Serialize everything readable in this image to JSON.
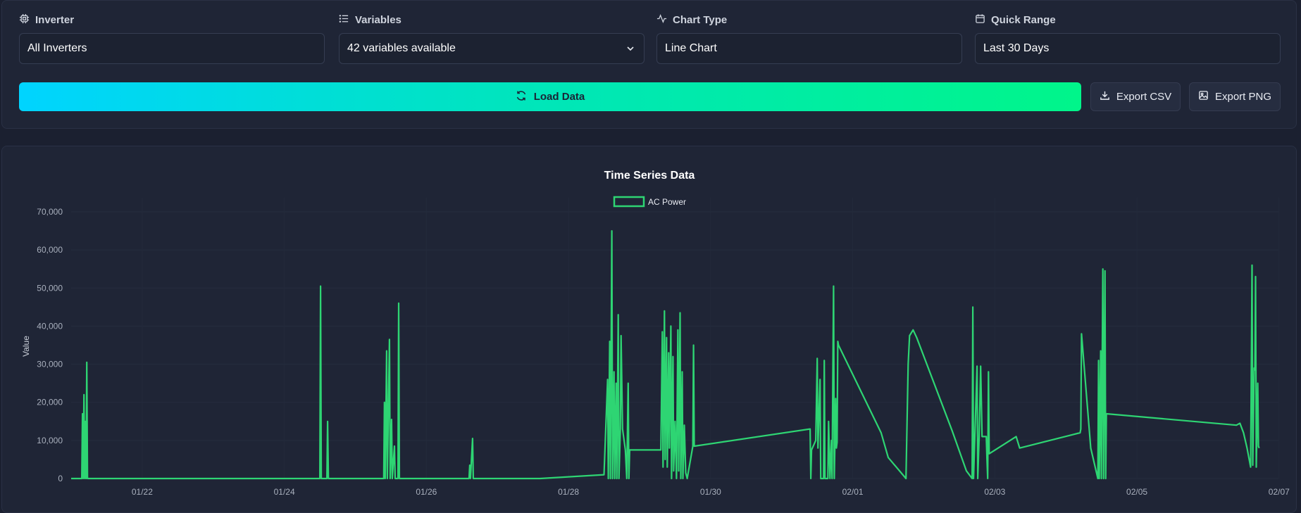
{
  "controls": {
    "inverter": {
      "label": "Inverter",
      "value": "All Inverters",
      "icon": "cpu-icon"
    },
    "variables": {
      "label": "Variables",
      "value": "42 variables available",
      "icon": "list-icon"
    },
    "chart_type": {
      "label": "Chart Type",
      "value": "Line Chart",
      "icon": "activity-icon"
    },
    "quick_range": {
      "label": "Quick Range",
      "value": "Last 30 Days",
      "icon": "calendar-icon"
    },
    "load_button": "Load Data",
    "export_csv": "Export CSV",
    "export_png": "Export PNG"
  },
  "colors": {
    "accent_start": "#00d4ff",
    "accent_end": "#00f58a",
    "series": "#2ed573"
  },
  "chart_data": {
    "type": "line",
    "title": "Time Series Data",
    "ylabel": "Value",
    "xlabel": "",
    "ylim": [
      0,
      70000
    ],
    "yticks": [
      "0",
      "10,000",
      "20,000",
      "30,000",
      "40,000",
      "50,000",
      "60,000",
      "70,000"
    ],
    "xticks": [
      "01/22",
      "01/24",
      "01/26",
      "01/28",
      "01/30",
      "02/01",
      "02/03",
      "02/05",
      "02/07"
    ],
    "legend_position": "top-center",
    "series": [
      {
        "name": "AC Power",
        "points": [
          [
            21.0,
            0
          ],
          [
            21.15,
            0
          ],
          [
            21.16,
            17000
          ],
          [
            21.17,
            0
          ],
          [
            21.18,
            22000
          ],
          [
            21.19,
            0
          ],
          [
            21.2,
            15000
          ],
          [
            21.21,
            0
          ],
          [
            21.22,
            30500
          ],
          [
            21.23,
            0
          ],
          [
            24.5,
            0
          ],
          [
            24.51,
            50500
          ],
          [
            24.52,
            0
          ],
          [
            24.6,
            0
          ],
          [
            24.61,
            15000
          ],
          [
            24.62,
            0
          ],
          [
            25.4,
            0
          ],
          [
            25.41,
            20000
          ],
          [
            25.42,
            0
          ],
          [
            25.44,
            33500
          ],
          [
            25.45,
            0
          ],
          [
            25.48,
            36500
          ],
          [
            25.49,
            0
          ],
          [
            25.51,
            15500
          ],
          [
            25.52,
            0
          ],
          [
            25.55,
            8500
          ],
          [
            25.56,
            0
          ],
          [
            25.6,
            0
          ],
          [
            25.61,
            46000
          ],
          [
            25.62,
            0
          ],
          [
            26.6,
            0
          ],
          [
            26.61,
            3500
          ],
          [
            26.62,
            0
          ],
          [
            26.65,
            10500
          ],
          [
            26.66,
            0
          ],
          [
            26.95,
            0
          ],
          [
            27.6,
            0
          ],
          [
            28.5,
            1000
          ],
          [
            28.55,
            26000
          ],
          [
            28.56,
            0
          ],
          [
            28.58,
            36000
          ],
          [
            28.59,
            0
          ],
          [
            28.61,
            65000
          ],
          [
            28.62,
            0
          ],
          [
            28.64,
            28000
          ],
          [
            28.65,
            0
          ],
          [
            28.67,
            25000
          ],
          [
            28.68,
            0
          ],
          [
            28.7,
            43000
          ],
          [
            28.71,
            0
          ],
          [
            28.73,
            13000
          ],
          [
            28.74,
            37500
          ],
          [
            28.76,
            13000
          ],
          [
            28.8,
            7500
          ],
          [
            28.82,
            0
          ],
          [
            28.84,
            25000
          ],
          [
            28.85,
            0
          ],
          [
            28.86,
            7500
          ],
          [
            29.3,
            7500
          ],
          [
            29.32,
            38500
          ],
          [
            29.33,
            3000
          ],
          [
            29.35,
            44000
          ],
          [
            29.36,
            5000
          ],
          [
            29.38,
            37000
          ],
          [
            29.39,
            3000
          ],
          [
            29.41,
            33000
          ],
          [
            29.42,
            8000
          ],
          [
            29.44,
            40000
          ],
          [
            29.45,
            0
          ],
          [
            29.47,
            32000
          ],
          [
            29.48,
            2000
          ],
          [
            29.5,
            15000
          ],
          [
            29.52,
            0
          ],
          [
            29.54,
            39000
          ],
          [
            29.55,
            2000
          ],
          [
            29.57,
            43500
          ],
          [
            29.58,
            0
          ],
          [
            29.6,
            28000
          ],
          [
            29.61,
            0
          ],
          [
            29.63,
            14000
          ],
          [
            29.65,
            1500
          ],
          [
            29.67,
            0
          ],
          [
            29.75,
            8500
          ],
          [
            29.76,
            35000
          ],
          [
            29.77,
            8500
          ],
          [
            31.4,
            13000
          ],
          [
            31.41,
            0
          ],
          [
            31.42,
            7500
          ],
          [
            31.48,
            10000
          ],
          [
            31.5,
            31500
          ],
          [
            31.51,
            8000
          ],
          [
            31.54,
            26000
          ],
          [
            31.55,
            0
          ],
          [
            31.59,
            0
          ],
          [
            31.6,
            31000
          ],
          [
            31.61,
            0
          ],
          [
            31.65,
            0
          ],
          [
            31.66,
            15000
          ],
          [
            31.68,
            0
          ],
          [
            31.7,
            10000
          ],
          [
            31.71,
            0
          ],
          [
            31.72,
            25000
          ],
          [
            31.73,
            50500
          ],
          [
            31.74,
            0
          ],
          [
            31.76,
            21000
          ],
          [
            31.77,
            8000
          ],
          [
            31.78,
            9500
          ],
          [
            31.79,
            36000
          ],
          [
            31.8,
            35000
          ],
          [
            32.4,
            12000
          ],
          [
            32.5,
            5500
          ],
          [
            32.75,
            0
          ],
          [
            32.78,
            30000
          ],
          [
            32.8,
            37500
          ],
          [
            32.85,
            39000
          ],
          [
            32.9,
            37000
          ],
          [
            33.4,
            12500
          ],
          [
            33.6,
            2000
          ],
          [
            33.68,
            0
          ],
          [
            33.69,
            45000
          ],
          [
            33.7,
            0
          ],
          [
            33.75,
            29500
          ],
          [
            33.76,
            0
          ],
          [
            33.78,
            11000
          ],
          [
            33.8,
            29500
          ],
          [
            33.82,
            11000
          ],
          [
            33.88,
            11000
          ],
          [
            33.89,
            5000
          ],
          [
            33.9,
            0
          ],
          [
            33.91,
            28000
          ],
          [
            33.92,
            6500
          ],
          [
            34.3,
            11000
          ],
          [
            34.35,
            8000
          ],
          [
            35.2,
            12000
          ],
          [
            35.21,
            13000
          ],
          [
            35.22,
            38000
          ],
          [
            35.35,
            8000
          ],
          [
            35.45,
            0
          ],
          [
            35.46,
            31000
          ],
          [
            35.47,
            0
          ],
          [
            35.49,
            33500
          ],
          [
            35.5,
            0
          ],
          [
            35.52,
            55000
          ],
          [
            35.53,
            0
          ],
          [
            35.55,
            54500
          ],
          [
            35.56,
            0
          ],
          [
            35.57,
            17000
          ],
          [
            37.4,
            14000
          ],
          [
            37.45,
            14500
          ],
          [
            37.5,
            12000
          ],
          [
            37.55,
            8000
          ],
          [
            37.6,
            3000
          ],
          [
            37.62,
            56000
          ],
          [
            37.63,
            3500
          ],
          [
            37.65,
            29000
          ],
          [
            37.66,
            28500
          ],
          [
            37.67,
            53000
          ],
          [
            37.68,
            3000
          ],
          [
            37.7,
            25000
          ],
          [
            37.71,
            8500
          ],
          [
            37.72,
            8000
          ]
        ]
      }
    ],
    "xrange": [
      21.0,
      37.72
    ]
  }
}
